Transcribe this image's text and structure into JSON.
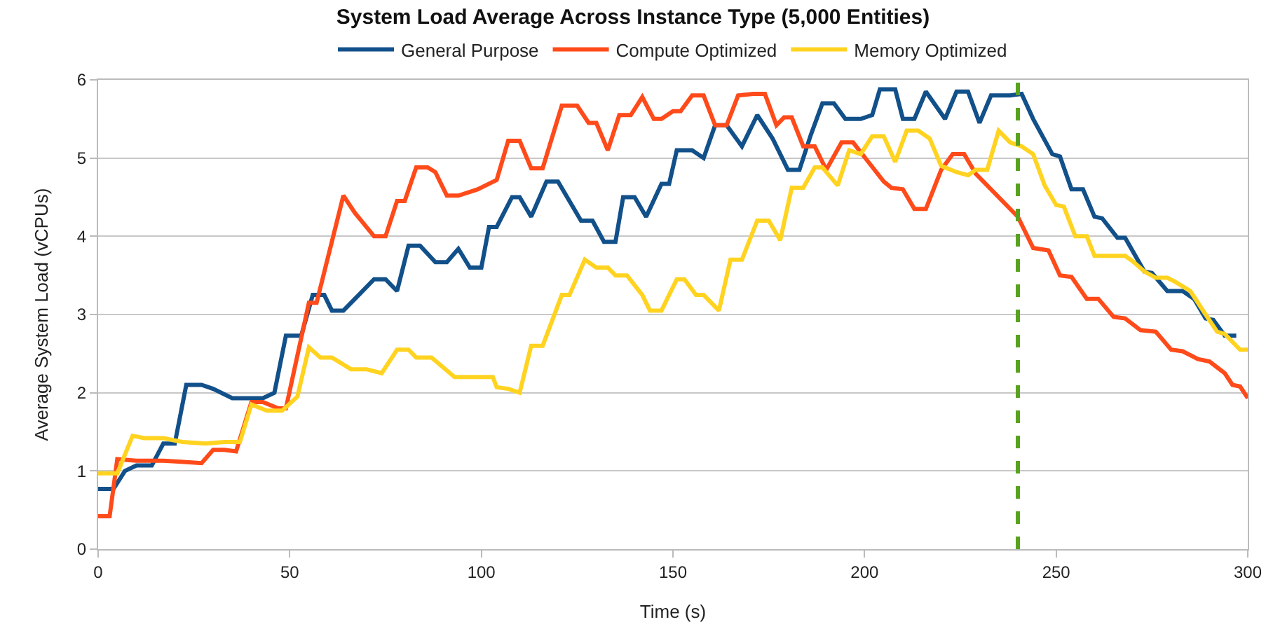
{
  "chart_data": {
    "type": "line",
    "title": "System Load Average Across Instance Type (5,000 Entities)",
    "xlabel": "Time (s)",
    "ylabel": "Average System Load (vCPUs)",
    "xlim": [
      0,
      300
    ],
    "xticks": [
      0,
      50,
      100,
      150,
      200,
      250,
      300
    ],
    "ylim": [
      0,
      6
    ],
    "yticks": [
      0,
      1,
      2,
      3,
      4,
      5,
      6
    ],
    "grid": "y",
    "legend": "top",
    "line_style": "solid",
    "marker": "none",
    "ref_lines": [
      {
        "axis": "x",
        "value": 240,
        "color": "#58a21e",
        "line_style": "dashed"
      }
    ],
    "series": [
      {
        "name": "General Purpose",
        "color": "#12508a",
        "x": [
          0,
          4,
          7,
          10,
          14,
          17,
          20,
          23,
          27,
          30,
          35,
          40,
          43,
          46,
          49,
          53,
          56,
          59,
          61,
          64,
          68,
          72,
          75,
          78,
          81,
          84,
          88,
          91,
          94,
          97,
          100,
          102,
          104,
          108,
          110,
          113,
          117,
          120,
          126,
          129,
          132,
          135,
          137,
          140,
          143,
          147,
          149,
          151,
          155,
          158,
          161,
          164,
          168,
          172,
          176,
          180,
          183,
          186,
          189,
          192,
          195,
          199,
          202,
          204,
          208,
          210,
          213,
          216,
          221,
          224,
          227,
          230,
          233,
          238,
          241,
          244,
          249,
          251,
          254,
          257,
          260,
          262,
          266,
          268,
          273,
          275,
          279,
          283,
          286,
          289,
          291,
          294,
          297
        ],
        "values": [
          0.77,
          0.77,
          1.0,
          1.07,
          1.07,
          1.35,
          1.35,
          2.1,
          2.1,
          2.05,
          1.93,
          1.93,
          1.93,
          2.0,
          2.73,
          2.73,
          3.25,
          3.25,
          3.05,
          3.05,
          3.25,
          3.45,
          3.45,
          3.3,
          3.88,
          3.88,
          3.67,
          3.67,
          3.84,
          3.6,
          3.6,
          4.12,
          4.12,
          4.5,
          4.5,
          4.25,
          4.7,
          4.7,
          4.2,
          4.2,
          3.93,
          3.93,
          4.5,
          4.5,
          4.25,
          4.67,
          4.67,
          5.1,
          5.1,
          5.0,
          5.42,
          5.42,
          5.15,
          5.55,
          5.25,
          4.85,
          4.85,
          5.3,
          5.7,
          5.7,
          5.5,
          5.5,
          5.55,
          5.88,
          5.88,
          5.5,
          5.5,
          5.85,
          5.5,
          5.85,
          5.85,
          5.45,
          5.8,
          5.8,
          5.82,
          5.5,
          5.05,
          5.02,
          4.6,
          4.6,
          4.25,
          4.23,
          3.98,
          3.98,
          3.55,
          3.53,
          3.3,
          3.3,
          3.2,
          2.95,
          2.93,
          2.73,
          2.73
        ]
      },
      {
        "name": "Compute Optimized",
        "color": "#ff4a1a",
        "x": [
          0,
          3,
          5,
          10,
          17,
          21,
          27,
          30,
          33,
          36,
          40,
          43,
          47,
          49,
          55,
          57,
          64,
          67,
          72,
          75,
          78,
          80,
          83,
          86,
          88,
          91,
          94,
          99,
          104,
          107,
          110,
          113,
          116,
          121,
          125,
          128,
          130,
          133,
          136,
          139,
          142,
          145,
          147,
          150,
          152,
          155,
          158,
          161,
          164,
          167,
          171,
          174,
          177,
          179,
          181,
          184,
          187,
          190,
          194,
          197,
          201,
          205,
          207,
          210,
          213,
          216,
          220,
          223,
          226,
          229,
          240,
          244,
          248,
          251,
          254,
          258,
          261,
          265,
          268,
          272,
          276,
          280,
          283,
          287,
          290,
          294,
          296,
          298,
          300
        ],
        "values": [
          0.42,
          0.42,
          1.15,
          1.13,
          1.13,
          1.12,
          1.1,
          1.27,
          1.27,
          1.25,
          1.88,
          1.88,
          1.8,
          1.8,
          3.15,
          3.15,
          4.52,
          4.3,
          4.0,
          4.0,
          4.45,
          4.45,
          4.88,
          4.88,
          4.82,
          4.52,
          4.52,
          4.6,
          4.72,
          5.22,
          5.22,
          4.87,
          4.87,
          5.67,
          5.67,
          5.45,
          5.45,
          5.1,
          5.55,
          5.55,
          5.78,
          5.5,
          5.5,
          5.6,
          5.6,
          5.8,
          5.8,
          5.42,
          5.42,
          5.8,
          5.82,
          5.82,
          5.42,
          5.52,
          5.52,
          5.15,
          5.15,
          4.85,
          5.2,
          5.2,
          4.95,
          4.7,
          4.62,
          4.6,
          4.35,
          4.35,
          4.85,
          5.05,
          5.05,
          4.8,
          4.25,
          3.85,
          3.82,
          3.5,
          3.48,
          3.2,
          3.2,
          2.97,
          2.95,
          2.8,
          2.78,
          2.55,
          2.53,
          2.43,
          2.4,
          2.25,
          2.1,
          2.08,
          1.93
        ]
      },
      {
        "name": "Memory Optimized",
        "color": "#ffd320",
        "x": [
          0,
          5,
          9,
          12,
          17,
          22,
          28,
          33,
          37,
          40,
          44,
          48,
          52,
          55,
          58,
          61,
          66,
          70,
          74,
          78,
          81,
          83,
          87,
          93,
          99,
          103,
          104,
          107,
          110,
          113,
          116,
          121,
          123,
          127,
          130,
          133,
          135,
          138,
          142,
          144,
          147,
          151,
          153,
          156,
          158,
          162,
          165,
          168,
          172,
          175,
          178,
          181,
          184,
          187,
          189,
          193,
          196,
          199,
          202,
          205,
          208,
          211,
          214,
          217,
          220,
          224,
          227,
          229,
          232,
          235,
          238,
          241,
          244,
          247,
          250,
          252,
          255,
          258,
          260,
          263,
          268,
          270,
          273,
          276,
          279,
          281,
          285,
          289,
          292,
          294,
          298,
          300
        ],
        "values": [
          0.97,
          0.97,
          1.45,
          1.42,
          1.42,
          1.37,
          1.35,
          1.37,
          1.37,
          1.85,
          1.77,
          1.77,
          1.95,
          2.58,
          2.45,
          2.45,
          2.3,
          2.3,
          2.25,
          2.55,
          2.55,
          2.45,
          2.45,
          2.2,
          2.2,
          2.2,
          2.07,
          2.05,
          2.0,
          2.6,
          2.6,
          3.25,
          3.25,
          3.7,
          3.6,
          3.6,
          3.5,
          3.5,
          3.25,
          3.05,
          3.05,
          3.45,
          3.45,
          3.25,
          3.25,
          3.05,
          3.7,
          3.7,
          4.2,
          4.2,
          3.95,
          4.62,
          4.62,
          4.88,
          4.88,
          4.65,
          5.1,
          5.05,
          5.28,
          5.28,
          4.95,
          5.35,
          5.35,
          5.25,
          4.9,
          4.82,
          4.78,
          4.85,
          4.85,
          5.35,
          5.2,
          5.15,
          5.05,
          4.65,
          4.4,
          4.38,
          4.0,
          4.0,
          3.75,
          3.75,
          3.75,
          3.68,
          3.55,
          3.47,
          3.47,
          3.42,
          3.3,
          3.0,
          2.78,
          2.75,
          2.55,
          2.55
        ]
      }
    ]
  }
}
